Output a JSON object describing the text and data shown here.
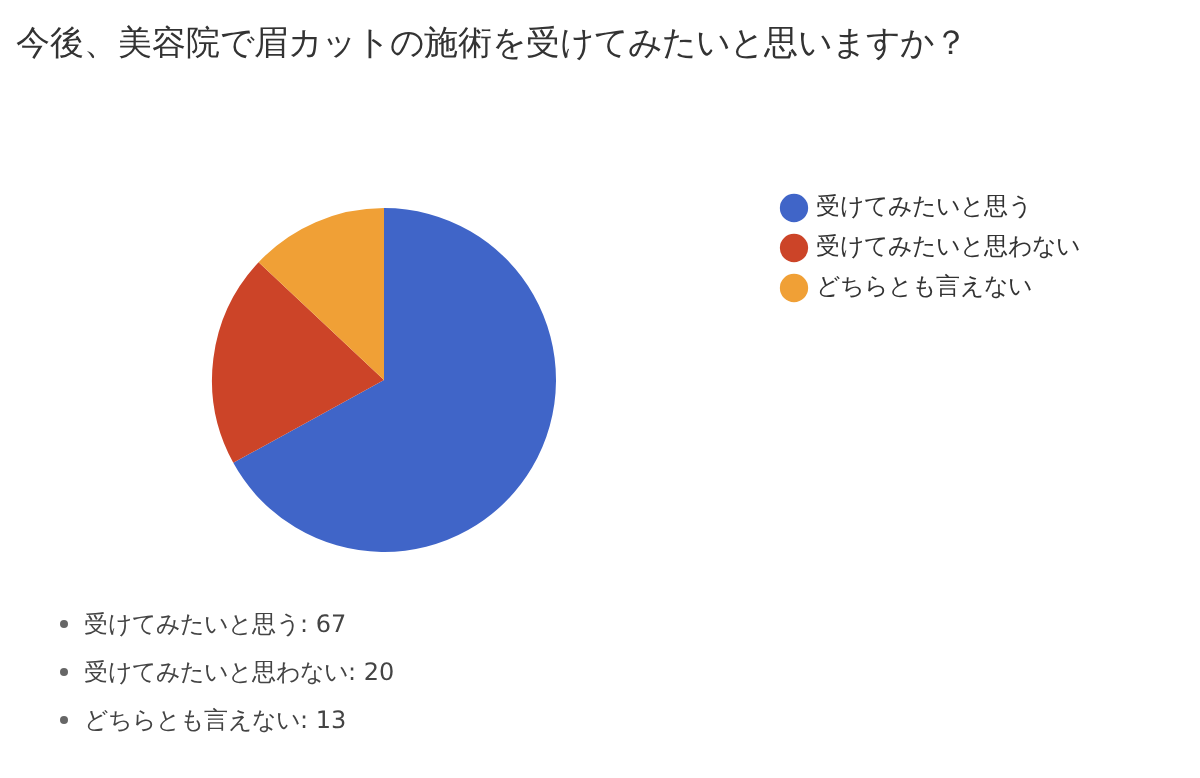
{
  "chart_data": {
    "type": "pie",
    "title": "今後、美容院で眉カットの施術を受けてみたいと思いますか？",
    "categories": [
      "受けてみたいと思う",
      "受けてみたいと思わない",
      "どちらとも言えない"
    ],
    "values": [
      67,
      20,
      13
    ],
    "colors": [
      "#4065c8",
      "#cc4428",
      "#f0a036"
    ],
    "legend": "right",
    "annotations": [
      "受けてみたいと思う: 67",
      "受けてみたいと思わない: 20",
      "どちらとも言えない: 13"
    ]
  }
}
